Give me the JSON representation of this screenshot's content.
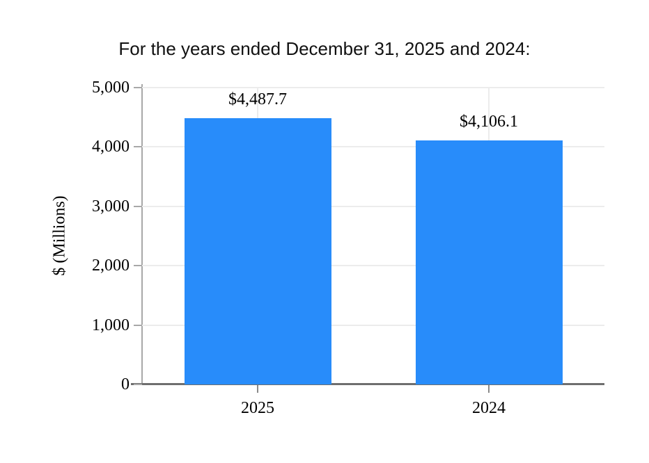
{
  "chart_data": {
    "type": "bar",
    "title": "For the years ended December 31, 2025 and 2024:",
    "categories": [
      "2025",
      "2024"
    ],
    "values": [
      4487.7,
      4106.1
    ],
    "bar_labels": [
      "$4,487.7",
      "$4,106.1"
    ],
    "xlabel": "",
    "ylabel": "$ (Millions)",
    "ylim": [
      0,
      5000
    ],
    "yticks": [
      0,
      1000,
      2000,
      3000,
      4000,
      5000
    ],
    "ytick_labels": [
      "0",
      "1,000",
      "2,000",
      "3,000",
      "4,000",
      "5,000"
    ],
    "grid": {
      "horizontal": true,
      "vertical_at_categories": true
    },
    "legend_position": "none",
    "colors": {
      "bar": "#288CFA",
      "gridline": "#ececec",
      "y_axis": "#a8a8a8",
      "x_tick": "#8a8a8a",
      "x_axis": "#6e6e6e",
      "text": "#000000",
      "title": "#111111",
      "background": "#ffffff"
    }
  }
}
